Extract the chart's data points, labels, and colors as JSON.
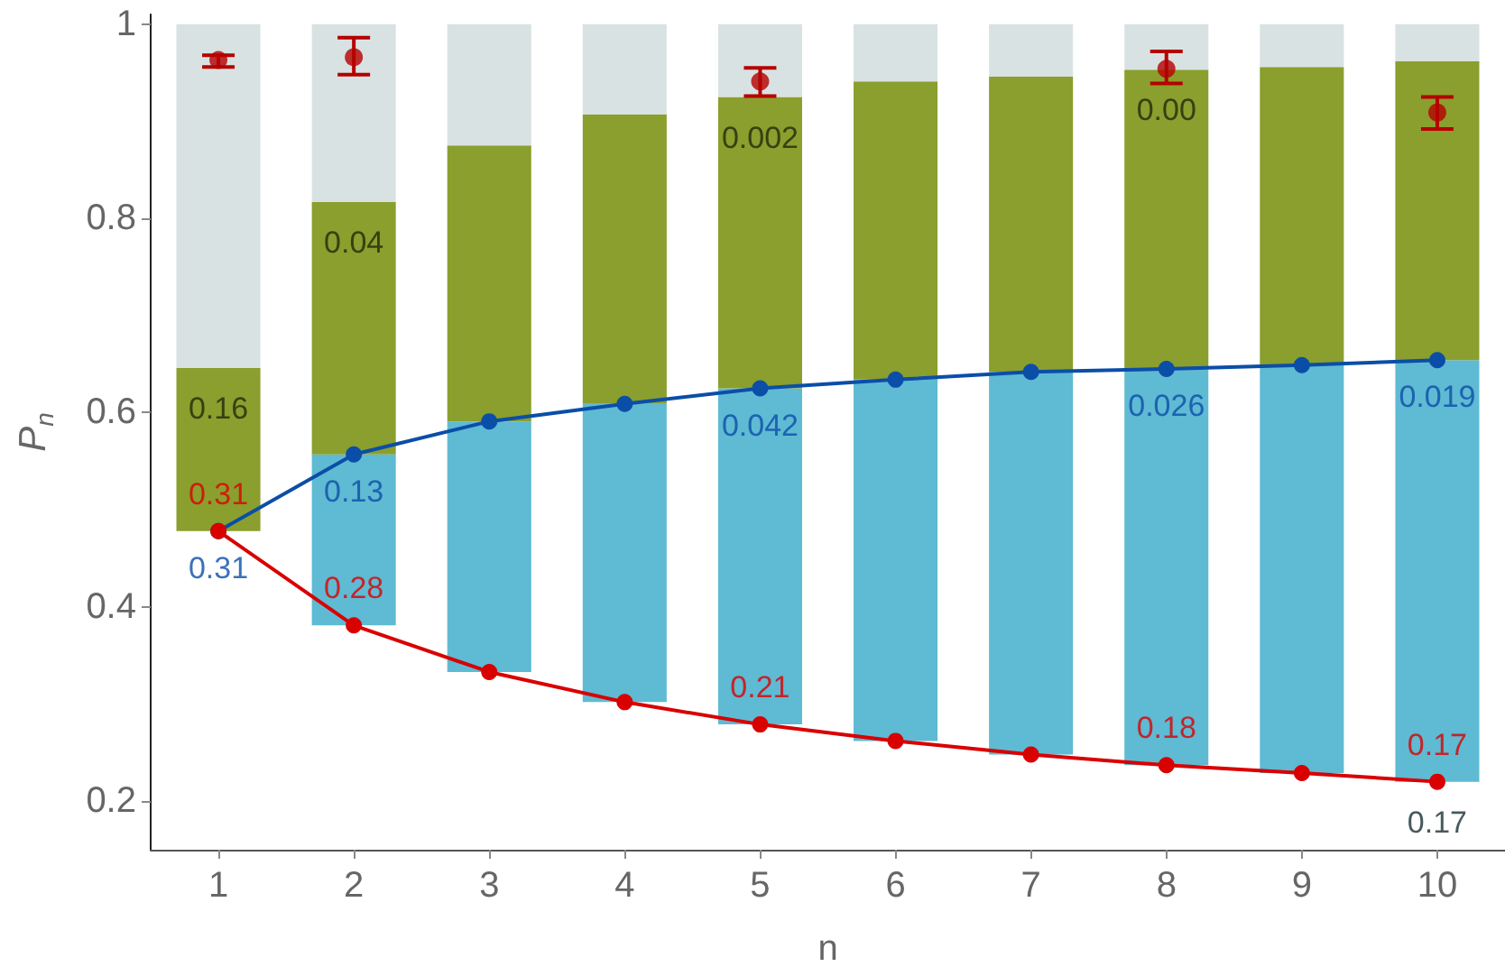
{
  "chart_data": {
    "type": "bar",
    "ylabel": "P$_{n}$",
    "xlabel": "n",
    "categories": [
      "1",
      "2",
      "3",
      "4",
      "5",
      "6",
      "7",
      "8",
      "9",
      "10"
    ],
    "series": [
      {
        "color": "#5fbad3",
        "base": [
          null,
          0.381,
          0.333,
          0.302,
          0.279,
          0.262,
          0.248,
          0.237,
          0.229,
          0.22
        ],
        "values": [
          null,
          0.176,
          0.258,
          0.307,
          0.346,
          0.372,
          0.394,
          0.408,
          0.42,
          0.434
        ]
      },
      {
        "color": "#8a9f2d",
        "base": [
          0.478,
          0.557,
          0.591,
          0.609,
          0.625,
          0.634,
          0.642,
          0.645,
          0.649,
          0.654
        ],
        "values": [
          0.168,
          0.26,
          0.284,
          0.298,
          0.3,
          0.307,
          0.304,
          0.308,
          0.307,
          0.308
        ]
      },
      {
        "color": "#d9e2e2",
        "base": [
          0.646,
          0.817,
          0.875,
          0.907,
          0.925,
          0.941,
          0.946,
          0.953,
          0.956,
          0.962
        ],
        "values": [
          0.354,
          0.183,
          0.125,
          0.093,
          0.075,
          0.059,
          0.054,
          0.047,
          0.044,
          0.038
        ]
      },
      {
        "type": "line",
        "color": "#0b4ea8",
        "values": [
          0.478,
          0.557,
          0.591,
          0.609,
          0.625,
          0.634,
          0.642,
          0.645,
          0.649,
          0.654
        ]
      },
      {
        "type": "line",
        "color": "#d90000",
        "values": [
          0.478,
          0.381,
          0.333,
          0.302,
          0.279,
          0.262,
          0.248,
          0.237,
          0.229,
          0.22
        ]
      },
      {
        "type": "scatter",
        "color": "#b50000",
        "x": [
          "1",
          "2",
          "5",
          "8",
          "10"
        ],
        "values": [
          0.963,
          0.966,
          0.941,
          0.954,
          0.909
        ],
        "errors": [
          [
            0.956,
            0.968
          ],
          [
            0.948,
            0.986
          ],
          [
            0.926,
            0.955
          ],
          [
            0.939,
            0.972
          ],
          [
            0.892,
            0.925
          ]
        ]
      }
    ],
    "annotations": [
      {
        "text": "0.31",
        "x": "1",
        "y": 0.478
      },
      {
        "text": "0.28",
        "x": "2",
        "y": 0.381
      },
      {
        "text": "0.21",
        "x": "5",
        "y": 0.279
      },
      {
        "text": "0.18",
        "x": "8",
        "y": 0.237
      },
      {
        "text": "0.17",
        "x": "10",
        "y": 0.22
      },
      {
        "text": "0.31",
        "x": "1",
        "y": 0.478
      },
      {
        "text": "0.13",
        "x": "2",
        "y": 0.557
      },
      {
        "text": "0.042",
        "x": "5",
        "y": 0.625
      },
      {
        "text": "0.026",
        "x": "8",
        "y": 0.645
      },
      {
        "text": "0.019",
        "x": "10",
        "y": 0.654
      },
      {
        "text": "0.16",
        "x": "1",
        "y": 0.646
      },
      {
        "text": "0.04",
        "x": "2",
        "y": 0.817
      },
      {
        "text": "0.002",
        "x": "5",
        "y": 0.925
      },
      {
        "text": "0.00",
        "x": "8",
        "y": 0.953
      },
      {
        "text": "0.17",
        "x": "10",
        "y": 0.22
      }
    ],
    "ylim": [
      0.15,
      1.01
    ],
    "yticks": [
      0.2,
      0.4,
      0.6,
      0.8,
      1
    ],
    "marker": "circle",
    "line_style": "solid"
  }
}
